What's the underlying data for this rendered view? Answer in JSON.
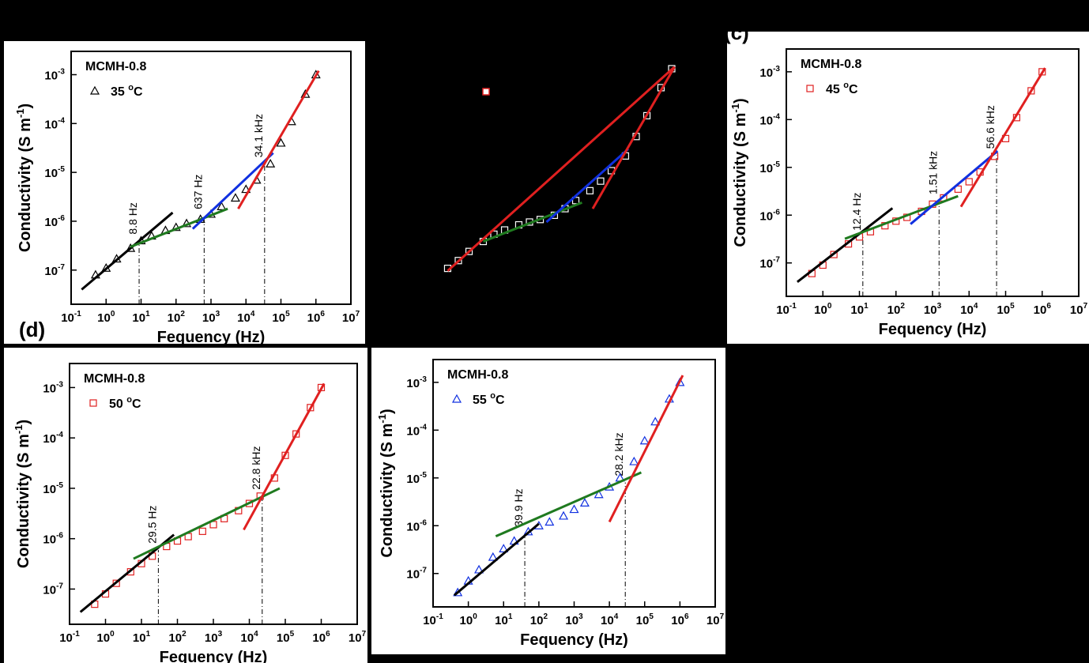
{
  "chart_data": [
    {
      "type": "scatter",
      "legend_title": "MCMH-0.8",
      "xlabel": "Fequency (Hz)",
      "ylabel": [
        "Conductivity (S m",
        "-1",
        ")"
      ],
      "xlim": [
        0.1,
        10000000
      ],
      "ylim": [
        2e-08,
        0.003
      ],
      "xticks": [
        {
          "value": 0.1,
          "label": "10",
          "exponent": "-1"
        },
        {
          "value": 1,
          "label": "10",
          "exponent": "0"
        },
        {
          "value": 10,
          "label": "10",
          "exponent": "1"
        },
        {
          "value": 100,
          "label": "10",
          "exponent": "2"
        },
        {
          "value": 1000,
          "label": "10",
          "exponent": "3"
        },
        {
          "value": 10000,
          "label": "10",
          "exponent": "4"
        },
        {
          "value": 100000,
          "label": "10",
          "exponent": "5"
        },
        {
          "value": 1000000,
          "label": "10",
          "exponent": "6"
        },
        {
          "value": 10000000,
          "label": "10",
          "exponent": "7"
        }
      ],
      "yticks": [
        {
          "value": 1e-07,
          "label": "10",
          "exponent": "-7"
        },
        {
          "value": 1e-06,
          "label": "10",
          "exponent": "-6"
        },
        {
          "value": 1e-05,
          "label": "10",
          "exponent": "-5"
        },
        {
          "value": 0.0001,
          "label": "10",
          "exponent": "-4"
        },
        {
          "value": 0.001,
          "label": "10",
          "exponent": "-3"
        }
      ],
      "x": [
        0.5,
        1,
        2,
        5,
        10,
        20,
        50,
        100,
        200,
        500,
        1000,
        2000,
        5000,
        10000,
        20000,
        50000,
        100000,
        200000,
        500000,
        1000000
      ],
      "series": [
        {
          "name": [
            "35 ",
            "o",
            "C"
          ],
          "color": "#000000",
          "marker": "triangle",
          "values": [
            8e-08,
            1.1e-07,
            1.7e-07,
            2.8e-07,
            4e-07,
            5e-07,
            6.5e-07,
            7.5e-07,
            9e-07,
            1.1e-06,
            1.4e-06,
            2e-06,
            3e-06,
            4.5e-06,
            7e-06,
            1.5e-05,
            4e-05,
            0.00011,
            0.0004,
            0.001
          ]
        }
      ],
      "fits": [
        {
          "color": "#000000",
          "x": [
            0.2,
            80
          ],
          "values": [
            4e-08,
            1.5e-06
          ]
        },
        {
          "color": "#1f7a1f",
          "x": [
            5,
            3000
          ],
          "values": [
            3e-07,
            1.8e-06
          ]
        },
        {
          "color": "#1030e0",
          "x": [
            300,
            60000
          ],
          "values": [
            7e-07,
            2.5e-05
          ]
        },
        {
          "color": "#e02020",
          "x": [
            6000,
            1200000
          ],
          "values": [
            1.8e-06,
            0.0012
          ]
        }
      ],
      "annotations": [
        {
          "x": 8.8,
          "y": 4e-07,
          "label": "8.8 Hz"
        },
        {
          "x": 637,
          "y": 1.3e-06,
          "label": "637 Hz"
        },
        {
          "x": 34100,
          "y": 1.5e-05,
          "label": "34.1 kHz"
        }
      ]
    },
    {
      "type": "scatter",
      "axes": false,
      "xlim": [
        0.1,
        10000000
      ],
      "ylim": [
        2e-08,
        0.003
      ],
      "x": [
        0.5,
        1,
        2,
        5,
        10,
        20,
        50,
        100,
        200,
        500,
        1000,
        2000,
        5000,
        10000,
        20000,
        50000,
        100000,
        200000,
        500000,
        1000000
      ],
      "series": [
        {
          "color": "#ffffff",
          "marker": "square",
          "values": [
            9e-08,
            1.3e-07,
            2e-07,
            3.2e-07,
            4.5e-07,
            5.5e-07,
            7e-07,
            8e-07,
            9e-07,
            1.1e-06,
            1.5e-06,
            2.2e-06,
            3.5e-06,
            5.5e-06,
            9e-06,
            1.8e-05,
            4.5e-05,
            0.00012,
            0.00045,
            0.0011
          ]
        }
      ],
      "fits": [
        {
          "color": "#e02020",
          "x": [
            0.5,
            1200000
          ],
          "values": [
            8e-08,
            0.0012
          ]
        },
        {
          "color": "#1f7a1f",
          "x": [
            5,
            3000
          ],
          "values": [
            3.2e-07,
            2e-06
          ]
        },
        {
          "color": "#1030e0",
          "x": [
            300,
            60000
          ],
          "values": [
            8e-07,
            2.5e-05
          ]
        },
        {
          "color": "#e02020",
          "x": [
            6000,
            1200000
          ],
          "values": [
            1.5e-06,
            0.0012
          ]
        }
      ]
    },
    {
      "type": "scatter",
      "panel_label": "(c)",
      "legend_title": "MCMH-0.8",
      "xlabel": "Fequency (Hz)",
      "ylabel": [
        "Conductivity (S m",
        "-1",
        ")"
      ],
      "xlim": [
        0.1,
        10000000
      ],
      "ylim": [
        2e-08,
        0.003
      ],
      "xticks": [
        {
          "value": 0.1,
          "label": "10",
          "exponent": "-1"
        },
        {
          "value": 1,
          "label": "10",
          "exponent": "0"
        },
        {
          "value": 10,
          "label": "10",
          "exponent": "1"
        },
        {
          "value": 100,
          "label": "10",
          "exponent": "2"
        },
        {
          "value": 1000,
          "label": "10",
          "exponent": "3"
        },
        {
          "value": 10000,
          "label": "10",
          "exponent": "4"
        },
        {
          "value": 100000,
          "label": "10",
          "exponent": "5"
        },
        {
          "value": 1000000,
          "label": "10",
          "exponent": "6"
        },
        {
          "value": 10000000,
          "label": "10",
          "exponent": "7"
        }
      ],
      "yticks": [
        {
          "value": 1e-07,
          "label": "10",
          "exponent": "-7"
        },
        {
          "value": 1e-06,
          "label": "10",
          "exponent": "-6"
        },
        {
          "value": 1e-05,
          "label": "10",
          "exponent": "-5"
        },
        {
          "value": 0.0001,
          "label": "10",
          "exponent": "-4"
        },
        {
          "value": 0.001,
          "label": "10",
          "exponent": "-3"
        }
      ],
      "x": [
        0.5,
        1,
        2,
        5,
        10,
        20,
        50,
        100,
        200,
        500,
        1000,
        2000,
        5000,
        10000,
        20000,
        50000,
        100000,
        200000,
        500000,
        1000000
      ],
      "series": [
        {
          "name": [
            "45 ",
            "o",
            "C"
          ],
          "color": "#e02020",
          "marker": "square",
          "values": [
            6e-08,
            9e-08,
            1.5e-07,
            2.5e-07,
            3.5e-07,
            4.5e-07,
            6e-07,
            7.5e-07,
            9e-07,
            1.2e-06,
            1.7e-06,
            2.3e-06,
            3.5e-06,
            5e-06,
            8e-06,
            1.7e-05,
            4e-05,
            0.00011,
            0.0004,
            0.001
          ]
        }
      ],
      "fits": [
        {
          "color": "#000000",
          "x": [
            0.2,
            80
          ],
          "values": [
            4e-08,
            1.4e-06
          ]
        },
        {
          "color": "#1f7a1f",
          "x": [
            4,
            5000
          ],
          "values": [
            3.2e-07,
            2.5e-06
          ]
        },
        {
          "color": "#1030e0",
          "x": [
            250,
            60000
          ],
          "values": [
            6.5e-07,
            2.2e-05
          ]
        },
        {
          "color": "#e02020",
          "x": [
            6000,
            1200000
          ],
          "values": [
            1.5e-06,
            0.0012
          ]
        }
      ],
      "annotations": [
        {
          "x": 12.4,
          "y": 3.5e-07,
          "label": "12.4 Hz"
        },
        {
          "x": 1510,
          "y": 2e-06,
          "label": "1.51 kHz"
        },
        {
          "x": 56600,
          "y": 1.8e-05,
          "label": "56.6 kHz"
        }
      ]
    },
    {
      "type": "scatter",
      "panel_label": "(d)",
      "legend_title": "MCMH-0.8",
      "xlabel": "Fequency (Hz)",
      "ylabel": [
        "Conductivity (S m",
        "-1",
        ")"
      ],
      "xlim": [
        0.1,
        10000000
      ],
      "ylim": [
        2e-08,
        0.003
      ],
      "xticks": [
        {
          "value": 0.1,
          "label": "10",
          "exponent": "-1"
        },
        {
          "value": 1,
          "label": "10",
          "exponent": "0"
        },
        {
          "value": 10,
          "label": "10",
          "exponent": "1"
        },
        {
          "value": 100,
          "label": "10",
          "exponent": "2"
        },
        {
          "value": 1000,
          "label": "10",
          "exponent": "3"
        },
        {
          "value": 10000,
          "label": "10",
          "exponent": "4"
        },
        {
          "value": 100000,
          "label": "10",
          "exponent": "5"
        },
        {
          "value": 1000000,
          "label": "10",
          "exponent": "6"
        },
        {
          "value": 10000000,
          "label": "10",
          "exponent": "7"
        }
      ],
      "yticks": [
        {
          "value": 1e-07,
          "label": "10",
          "exponent": "-7"
        },
        {
          "value": 1e-06,
          "label": "10",
          "exponent": "-6"
        },
        {
          "value": 1e-05,
          "label": "10",
          "exponent": "-5"
        },
        {
          "value": 0.0001,
          "label": "10",
          "exponent": "-4"
        },
        {
          "value": 0.001,
          "label": "10",
          "exponent": "-3"
        }
      ],
      "x": [
        0.5,
        1,
        2,
        5,
        10,
        20,
        50,
        100,
        200,
        500,
        1000,
        2000,
        5000,
        10000,
        20000,
        50000,
        100000,
        200000,
        500000,
        1000000
      ],
      "series": [
        {
          "name": [
            "50 ",
            "o",
            "C"
          ],
          "color": "#e02020",
          "marker": "square",
          "values": [
            5e-08,
            8e-08,
            1.3e-07,
            2.2e-07,
            3.2e-07,
            4.5e-07,
            7e-07,
            9e-07,
            1.1e-06,
            1.4e-06,
            1.9e-06,
            2.5e-06,
            3.6e-06,
            5e-06,
            7e-06,
            1.6e-05,
            4.5e-05,
            0.00012,
            0.0004,
            0.001
          ]
        }
      ],
      "fits": [
        {
          "color": "#000000",
          "x": [
            0.2,
            80
          ],
          "values": [
            3.5e-08,
            1.2e-06
          ]
        },
        {
          "color": "#1f7a1f",
          "x": [
            6,
            70000
          ],
          "values": [
            4e-07,
            1e-05
          ]
        },
        {
          "color": "#e02020",
          "x": [
            7000,
            1200000
          ],
          "values": [
            1.5e-06,
            0.0012
          ]
        }
      ],
      "annotations": [
        {
          "x": 29.5,
          "y": 6e-07,
          "label": "29.5 Hz"
        },
        {
          "x": 22800,
          "y": 7e-06,
          "label": "22.8 kHz"
        }
      ]
    },
    {
      "type": "scatter",
      "legend_title": "MCMH-0.8",
      "xlabel": "Fequency (Hz)",
      "ylabel": [
        "Conductivity (S m",
        "-1",
        ")"
      ],
      "xlim": [
        0.1,
        10000000
      ],
      "ylim": [
        2e-08,
        0.003
      ],
      "xticks": [
        {
          "value": 0.1,
          "label": "10",
          "exponent": "-1"
        },
        {
          "value": 1,
          "label": "10",
          "exponent": "0"
        },
        {
          "value": 10,
          "label": "10",
          "exponent": "1"
        },
        {
          "value": 100,
          "label": "10",
          "exponent": "2"
        },
        {
          "value": 1000,
          "label": "10",
          "exponent": "3"
        },
        {
          "value": 10000,
          "label": "10",
          "exponent": "4"
        },
        {
          "value": 100000,
          "label": "10",
          "exponent": "5"
        },
        {
          "value": 1000000,
          "label": "10",
          "exponent": "6"
        },
        {
          "value": 10000000,
          "label": "10",
          "exponent": "7"
        }
      ],
      "yticks": [
        {
          "value": 1e-07,
          "label": "10",
          "exponent": "-7"
        },
        {
          "value": 1e-06,
          "label": "10",
          "exponent": "-6"
        },
        {
          "value": 1e-05,
          "label": "10",
          "exponent": "-5"
        },
        {
          "value": 0.0001,
          "label": "10",
          "exponent": "-4"
        },
        {
          "value": 0.001,
          "label": "10",
          "exponent": "-3"
        }
      ],
      "x": [
        0.5,
        1,
        2,
        5,
        10,
        20,
        50,
        100,
        200,
        500,
        1000,
        2000,
        5000,
        10000,
        20000,
        50000,
        100000,
        200000,
        500000,
        1000000
      ],
      "series": [
        {
          "name": [
            "55 ",
            "o",
            "C"
          ],
          "color": "#1030e0",
          "marker": "triangle",
          "values": [
            4e-08,
            7e-08,
            1.2e-07,
            2.2e-07,
            3.3e-07,
            4.8e-07,
            7.5e-07,
            1e-06,
            1.2e-06,
            1.6e-06,
            2.2e-06,
            3e-06,
            4.5e-06,
            6.5e-06,
            1e-05,
            2.2e-05,
            6e-05,
            0.00015,
            0.00045,
            0.001
          ]
        }
      ],
      "fits": [
        {
          "color": "#000000",
          "x": [
            0.4,
            100
          ],
          "values": [
            3.5e-08,
            1.1e-06
          ]
        },
        {
          "color": "#1f7a1f",
          "x": [
            6,
            80000
          ],
          "values": [
            6e-07,
            1.3e-05
          ]
        },
        {
          "color": "#e02020",
          "x": [
            10000,
            1200000
          ],
          "values": [
            1.2e-06,
            0.0014
          ]
        }
      ],
      "annotations": [
        {
          "x": 39.9,
          "y": 7e-07,
          "label": "39.9 Hz"
        },
        {
          "x": 28200,
          "y": 8e-06,
          "label": "28.2 kHz"
        }
      ]
    }
  ]
}
